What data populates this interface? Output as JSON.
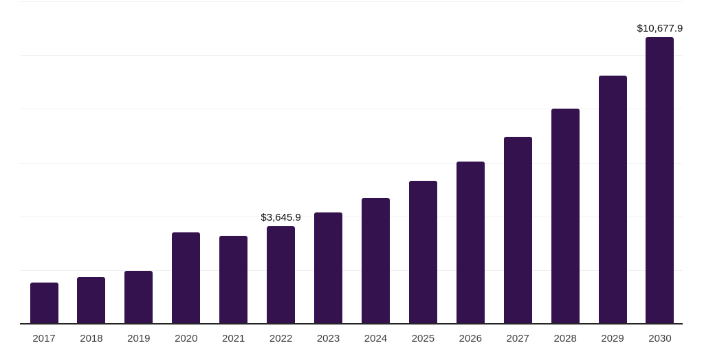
{
  "chart_data": {
    "type": "bar",
    "title": "",
    "xlabel": "",
    "ylabel": "",
    "categories": [
      "2017",
      "2018",
      "2019",
      "2020",
      "2021",
      "2022",
      "2023",
      "2024",
      "2025",
      "2026",
      "2027",
      "2028",
      "2029",
      "2030"
    ],
    "values": [
      1535,
      1740,
      1970,
      3400,
      3270,
      3645.9,
      4140,
      4680,
      5320,
      6040,
      6950,
      8010,
      9230,
      10677.9
    ],
    "annotations": [
      {
        "category": "2022",
        "text": "$3,645.9"
      },
      {
        "category": "2030",
        "text": "$10,677.9"
      }
    ],
    "ylim": [
      0,
      12000
    ],
    "gridline_interval": 2000,
    "grid": true,
    "y_axis_labels_visible": false,
    "legend": "none",
    "colors": {
      "bar": "#34124E",
      "gridline": "#f0f0f0",
      "axis": "#262626",
      "tick_label": "#3d3d3d",
      "value_label": "#0d0d0d",
      "background": "#ffffff"
    }
  }
}
